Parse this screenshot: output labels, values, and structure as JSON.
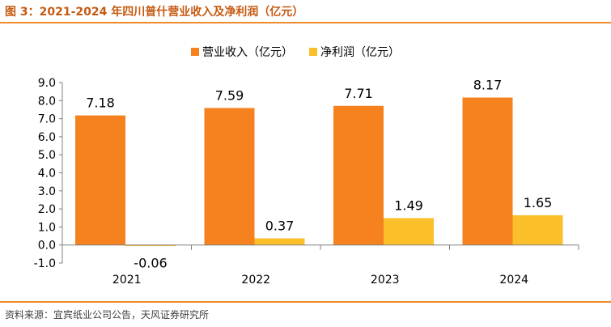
{
  "figure": {
    "title": "图 3：2021-2024 年四川普什营业收入及净利润（亿元）",
    "source": "资料来源：宜宾纸业公司公告，天风证券研究所"
  },
  "colors": {
    "title": "#c55a11",
    "rule": "#ee8a2a",
    "revenue": "#f5821f",
    "profit": "#fbbf2a"
  },
  "chart_data": {
    "type": "bar",
    "categories": [
      "2021",
      "2022",
      "2023",
      "2024"
    ],
    "series": [
      {
        "name": "营业收入（亿元）",
        "values": [
          7.18,
          7.59,
          7.71,
          8.17
        ]
      },
      {
        "name": "净利润（亿元）",
        "values": [
          -0.06,
          0.37,
          1.49,
          1.65
        ]
      }
    ],
    "ylim": [
      -1.0,
      9.0
    ],
    "yticks": [
      "-1.0",
      "0.0",
      "1.0",
      "2.0",
      "3.0",
      "4.0",
      "5.0",
      "6.0",
      "7.0",
      "8.0",
      "9.0"
    ],
    "grid": false,
    "legend_position": "top-center",
    "data_labels": true
  }
}
